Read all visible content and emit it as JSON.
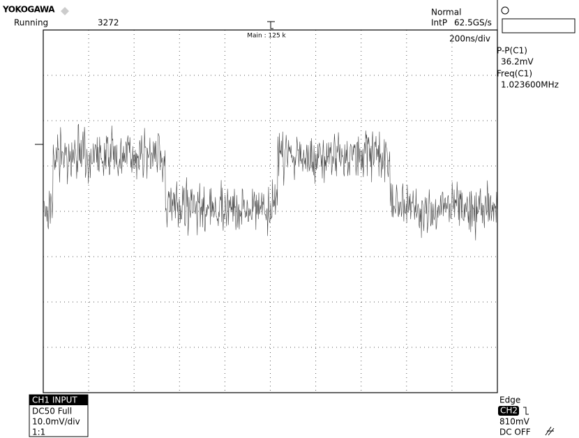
{
  "header": {
    "brand": "YOKOGAWA",
    "state": "Running",
    "count": "3272",
    "zoom": "Main : 125 k",
    "mode": "Normal",
    "interp": "IntP",
    "rate": "62.5GS/s",
    "timebase": "200ns/div"
  },
  "measurements": [
    {
      "label": "P-P(C1)",
      "value": "36.2mV"
    },
    {
      "label": "Freq(C1)",
      "value": "1.023600MHz"
    }
  ],
  "channel": {
    "title": "CH1 INPUT",
    "coupling": "DC50 Full",
    "scale": "10.0mV/div",
    "probe": "1:1"
  },
  "trigger": {
    "type": "Edge",
    "source": "CH2",
    "level": "810mV",
    "filter": "DC OFF"
  }
}
